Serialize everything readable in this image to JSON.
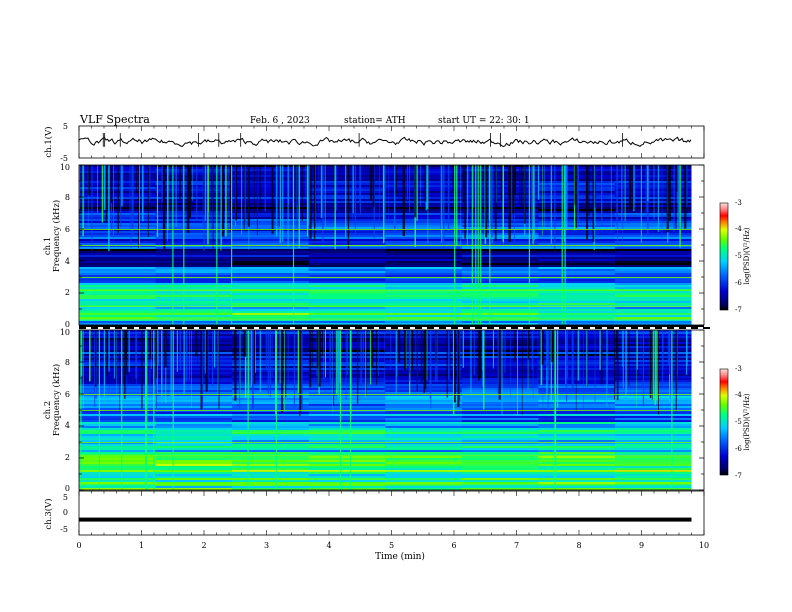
{
  "header": {
    "title": "VLF  Spectra",
    "date": "Feb. 6  , 2023",
    "station": "station= ATH",
    "start": "start  UT  =    22: 30: 1"
  },
  "chart_data": [
    {
      "type": "line",
      "panel": "ch1-waveform",
      "ylabel": "ch.1(V)",
      "ylim": [
        -5,
        5
      ],
      "yticks": [
        "5",
        "-5"
      ],
      "x_range_min": [
        0,
        10
      ],
      "data_ends_min": 9.8,
      "level_v": 0.0,
      "color": "#000000"
    },
    {
      "type": "heatmap",
      "panel": "ch1-spectrogram",
      "ylabel_channel": "ch.1",
      "ylabel": "Frequency  (kHz)",
      "ylim": [
        0,
        10
      ],
      "yticks": [
        "0",
        "2",
        "4",
        "6",
        "8",
        "10"
      ],
      "colorbar": {
        "label": "log(PSD)(V²/Hz)",
        "range": [
          -7,
          -3
        ],
        "ticks": [
          "-3",
          "-4",
          "-5",
          "-6",
          "-7"
        ]
      },
      "bands_khz": [
        {
          "freq": [
            0.0,
            0.3
          ],
          "level": -5.5
        },
        {
          "freq": [
            0.3,
            1.0
          ],
          "level": -4.6
        },
        {
          "freq": [
            1.0,
            2.6
          ],
          "level": -5.0
        },
        {
          "freq": [
            2.6,
            3.6
          ],
          "level": -5.8
        },
        {
          "freq": [
            3.6,
            4.8
          ],
          "level": -6.6
        },
        {
          "freq": [
            4.8,
            7.0
          ],
          "level": -6.0
        },
        {
          "freq": [
            7.0,
            10.0
          ],
          "level": -6.4
        }
      ]
    },
    {
      "type": "heatmap",
      "panel": "ch2-spectrogram",
      "ylabel_channel": "ch.2",
      "ylabel": "Frequency  (kHz)",
      "ylim": [
        0,
        10
      ],
      "yticks": [
        "0",
        "2",
        "4",
        "6",
        "8",
        "10"
      ],
      "colorbar": {
        "label": "log(PSD)(V²/Hz)",
        "range": [
          -7,
          -3
        ],
        "ticks": [
          "-3",
          "-4",
          "-5",
          "-6",
          "-7"
        ]
      },
      "bands_khz": [
        {
          "freq": [
            0.0,
            1.0
          ],
          "level": -4.8
        },
        {
          "freq": [
            1.0,
            2.4
          ],
          "level": -4.5
        },
        {
          "freq": [
            2.4,
            4.2
          ],
          "level": -5.1
        },
        {
          "freq": [
            4.2,
            6.5
          ],
          "level": -5.6
        },
        {
          "freq": [
            6.5,
            10.0
          ],
          "level": -6.3
        }
      ]
    },
    {
      "type": "line",
      "panel": "ch3-waveform",
      "ylabel": "ch.3(V)",
      "ylim": [
        -5,
        5
      ],
      "yticks": [
        "5",
        "0",
        "-5"
      ],
      "xlabel": "Time  (min)",
      "xlim": [
        0,
        10
      ],
      "xticks": [
        "0",
        "1",
        "2",
        "3",
        "4",
        "5",
        "6",
        "7",
        "8",
        "9",
        "10"
      ],
      "data_ends_min": 9.8,
      "level_v": -1.5,
      "color": "#000000"
    }
  ]
}
